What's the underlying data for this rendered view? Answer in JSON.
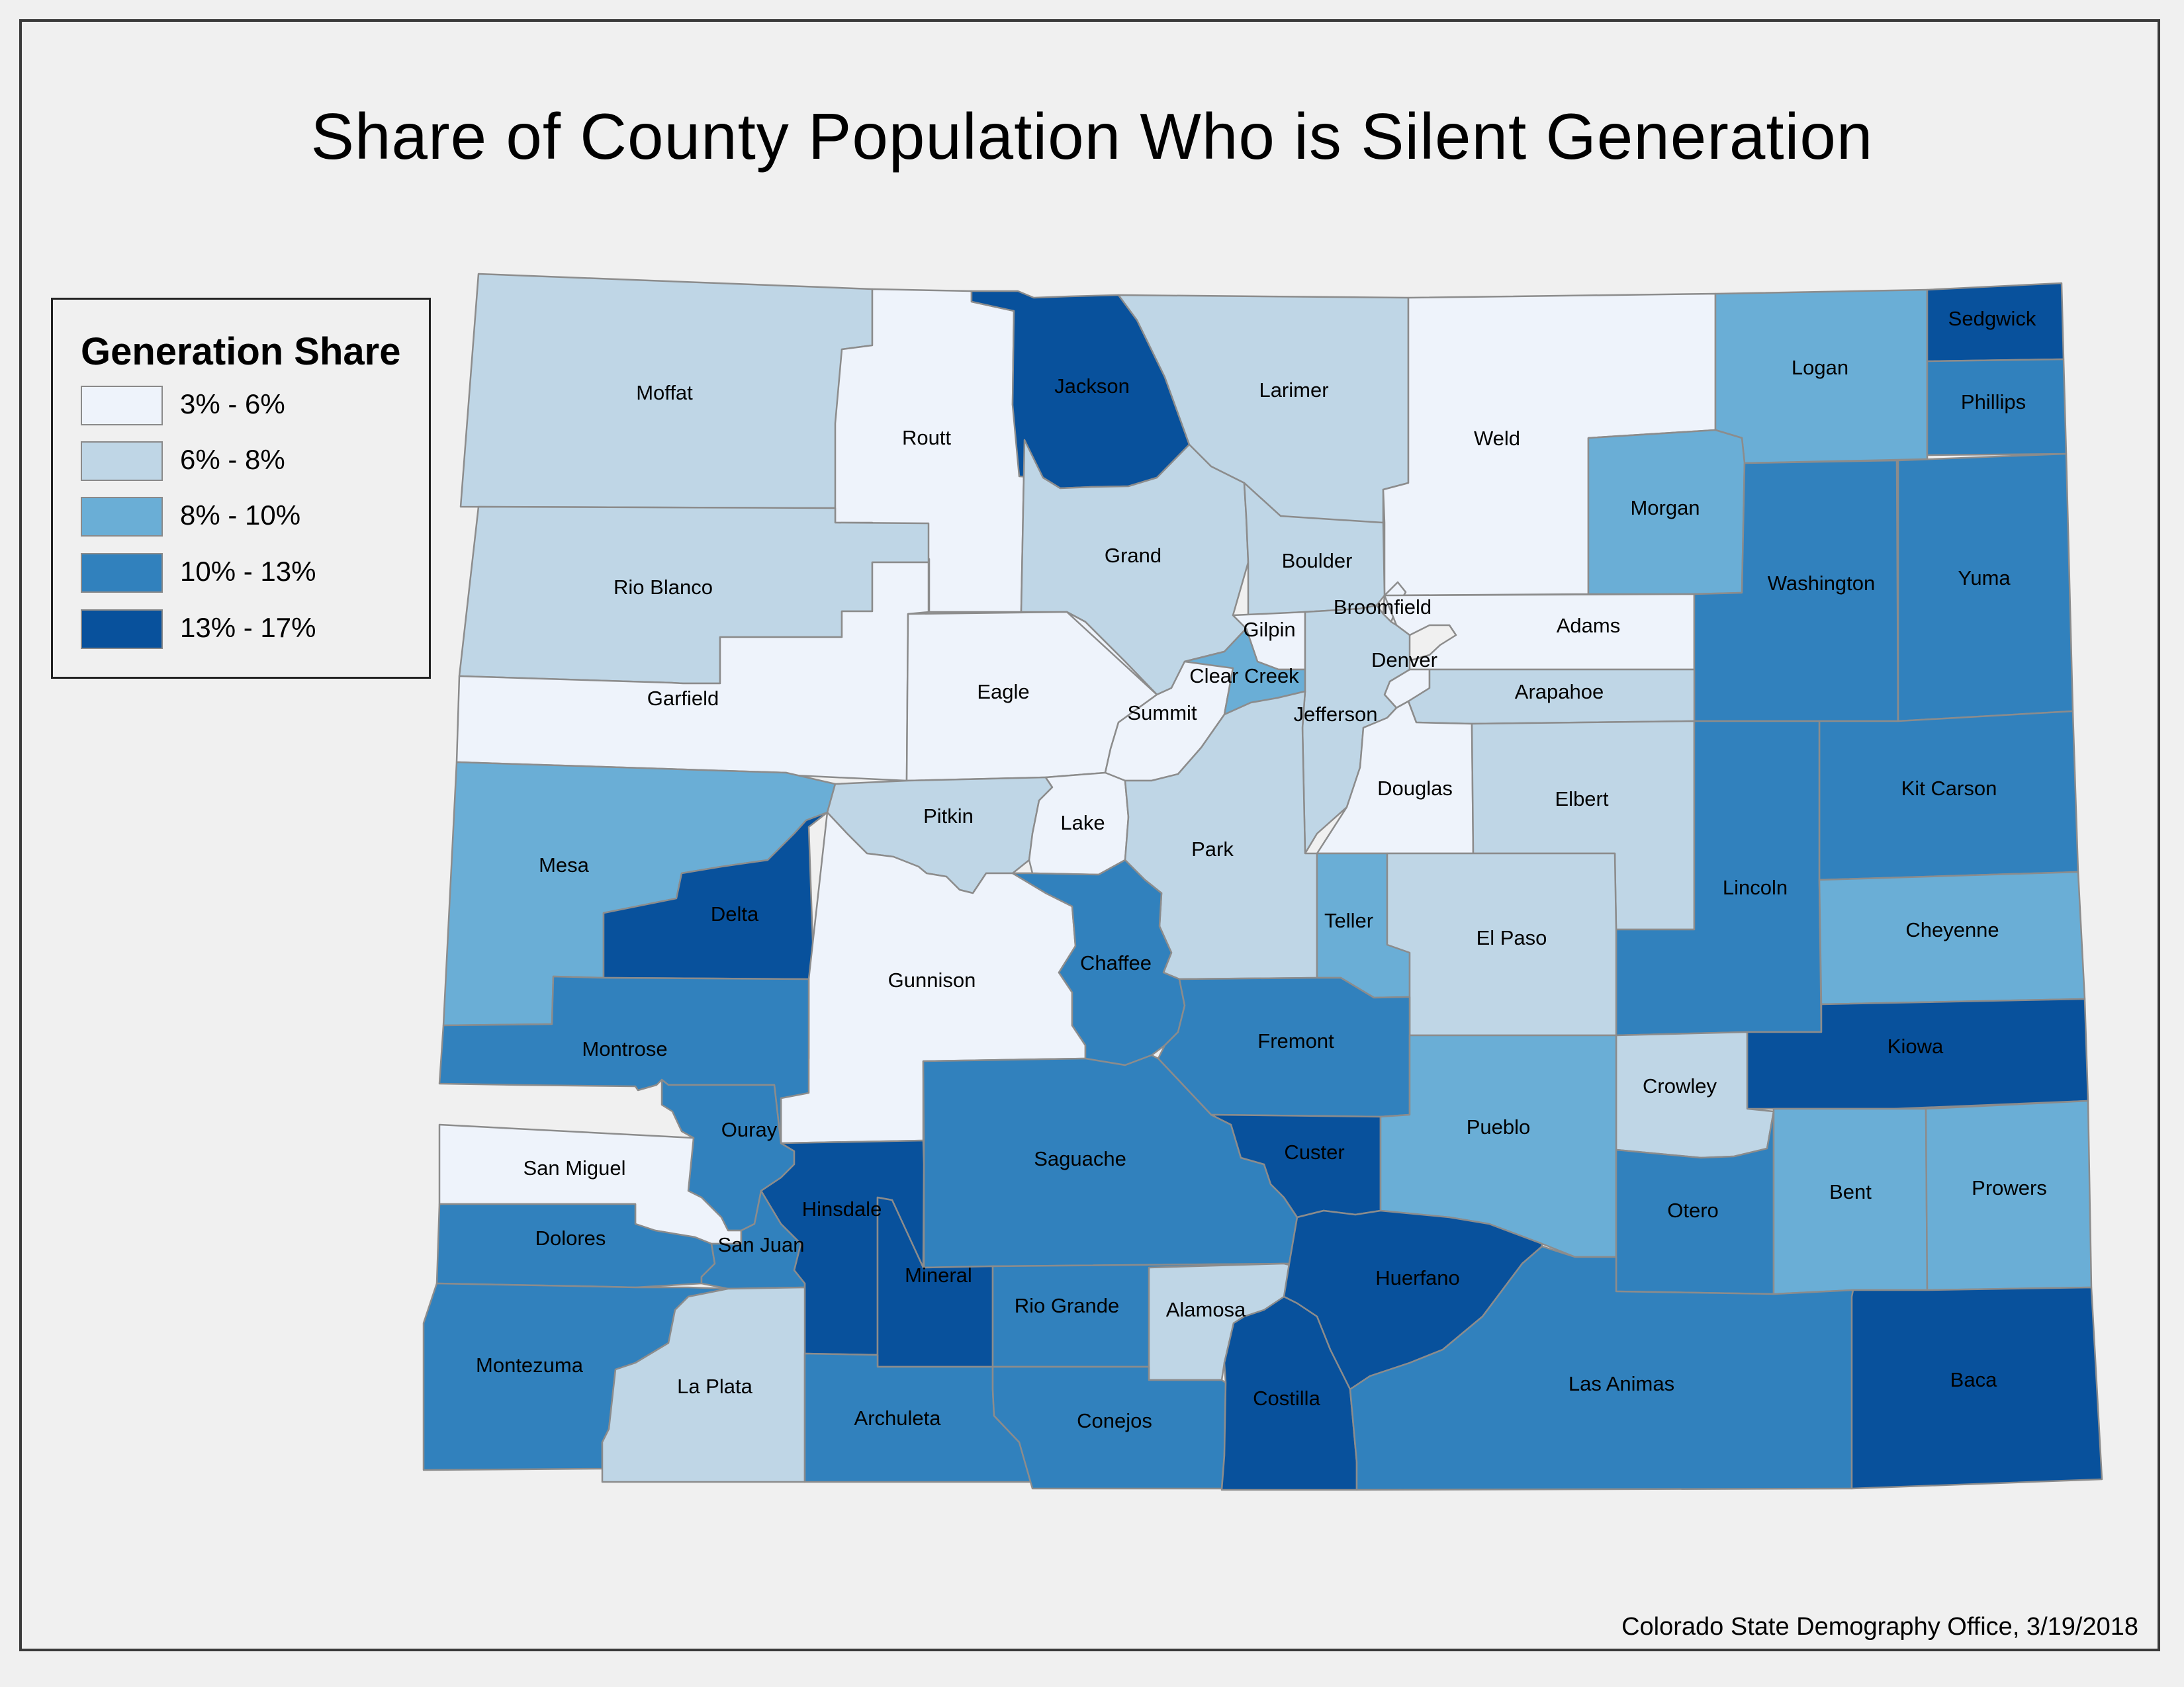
{
  "title": "Share of County Population Who is Silent Generation",
  "credit": "Colorado State Demography Office, 3/19/2018",
  "legend": {
    "title": "Generation Share",
    "classes": [
      {
        "label": "3% - 6%",
        "color": "#eef3fb"
      },
      {
        "label": "6% - 8%",
        "color": "#bfd6e6"
      },
      {
        "label": "8% - 10%",
        "color": "#6aaed6"
      },
      {
        "label": "10% - 13%",
        "color": "#3181bd"
      },
      {
        "label": "13% - 17%",
        "color": "#08519c"
      }
    ]
  },
  "counties": [
    {
      "name": "Moffat",
      "class": 1
    },
    {
      "name": "Routt",
      "class": 0
    },
    {
      "name": "Jackson",
      "class": 4
    },
    {
      "name": "Larimer",
      "class": 1
    },
    {
      "name": "Weld",
      "class": 0
    },
    {
      "name": "Logan",
      "class": 2
    },
    {
      "name": "Sedgwick",
      "class": 4
    },
    {
      "name": "Phillips",
      "class": 3
    },
    {
      "name": "Morgan",
      "class": 2
    },
    {
      "name": "Rio Blanco",
      "class": 1
    },
    {
      "name": "Grand",
      "class": 1
    },
    {
      "name": "Boulder",
      "class": 1
    },
    {
      "name": "Broomfield",
      "class": 0
    },
    {
      "name": "Gilpin",
      "class": 0
    },
    {
      "name": "Adams",
      "class": 0
    },
    {
      "name": "Washington",
      "class": 3
    },
    {
      "name": "Yuma",
      "class": 3
    },
    {
      "name": "Garfield",
      "class": 0
    },
    {
      "name": "Eagle",
      "class": 0
    },
    {
      "name": "Summit",
      "class": 0
    },
    {
      "name": "Clear Creek",
      "class": 2
    },
    {
      "name": "Denver",
      "class": 0
    },
    {
      "name": "Jefferson",
      "class": 1
    },
    {
      "name": "Arapahoe",
      "class": 1
    },
    {
      "name": "Douglas",
      "class": 0
    },
    {
      "name": "Elbert",
      "class": 1
    },
    {
      "name": "Kit Carson",
      "class": 3
    },
    {
      "name": "Lincoln",
      "class": 3
    },
    {
      "name": "Mesa",
      "class": 2
    },
    {
      "name": "Pitkin",
      "class": 1
    },
    {
      "name": "Lake",
      "class": 0
    },
    {
      "name": "Park",
      "class": 1
    },
    {
      "name": "Teller",
      "class": 2
    },
    {
      "name": "El Paso",
      "class": 1
    },
    {
      "name": "Cheyenne",
      "class": 2
    },
    {
      "name": "Delta",
      "class": 4
    },
    {
      "name": "Gunnison",
      "class": 0
    },
    {
      "name": "Chaffee",
      "class": 3
    },
    {
      "name": "Fremont",
      "class": 3
    },
    {
      "name": "Montrose",
      "class": 3
    },
    {
      "name": "Kiowa",
      "class": 4
    },
    {
      "name": "Crowley",
      "class": 1
    },
    {
      "name": "Ouray",
      "class": 3
    },
    {
      "name": "San Miguel",
      "class": 0
    },
    {
      "name": "Saguache",
      "class": 3
    },
    {
      "name": "Custer",
      "class": 4
    },
    {
      "name": "Pueblo",
      "class": 2
    },
    {
      "name": "Otero",
      "class": 3
    },
    {
      "name": "Bent",
      "class": 2
    },
    {
      "name": "Prowers",
      "class": 2
    },
    {
      "name": "Hinsdale",
      "class": 4
    },
    {
      "name": "Dolores",
      "class": 3
    },
    {
      "name": "San Juan",
      "class": 3
    },
    {
      "name": "Mineral",
      "class": 4
    },
    {
      "name": "Rio Grande",
      "class": 3
    },
    {
      "name": "Alamosa",
      "class": 1
    },
    {
      "name": "Huerfano",
      "class": 4
    },
    {
      "name": "Montezuma",
      "class": 3
    },
    {
      "name": "La Plata",
      "class": 1
    },
    {
      "name": "Archuleta",
      "class": 3
    },
    {
      "name": "Conejos",
      "class": 3
    },
    {
      "name": "Costilla",
      "class": 4
    },
    {
      "name": "Las Animas",
      "class": 3
    },
    {
      "name": "Baca",
      "class": 4
    }
  ]
}
